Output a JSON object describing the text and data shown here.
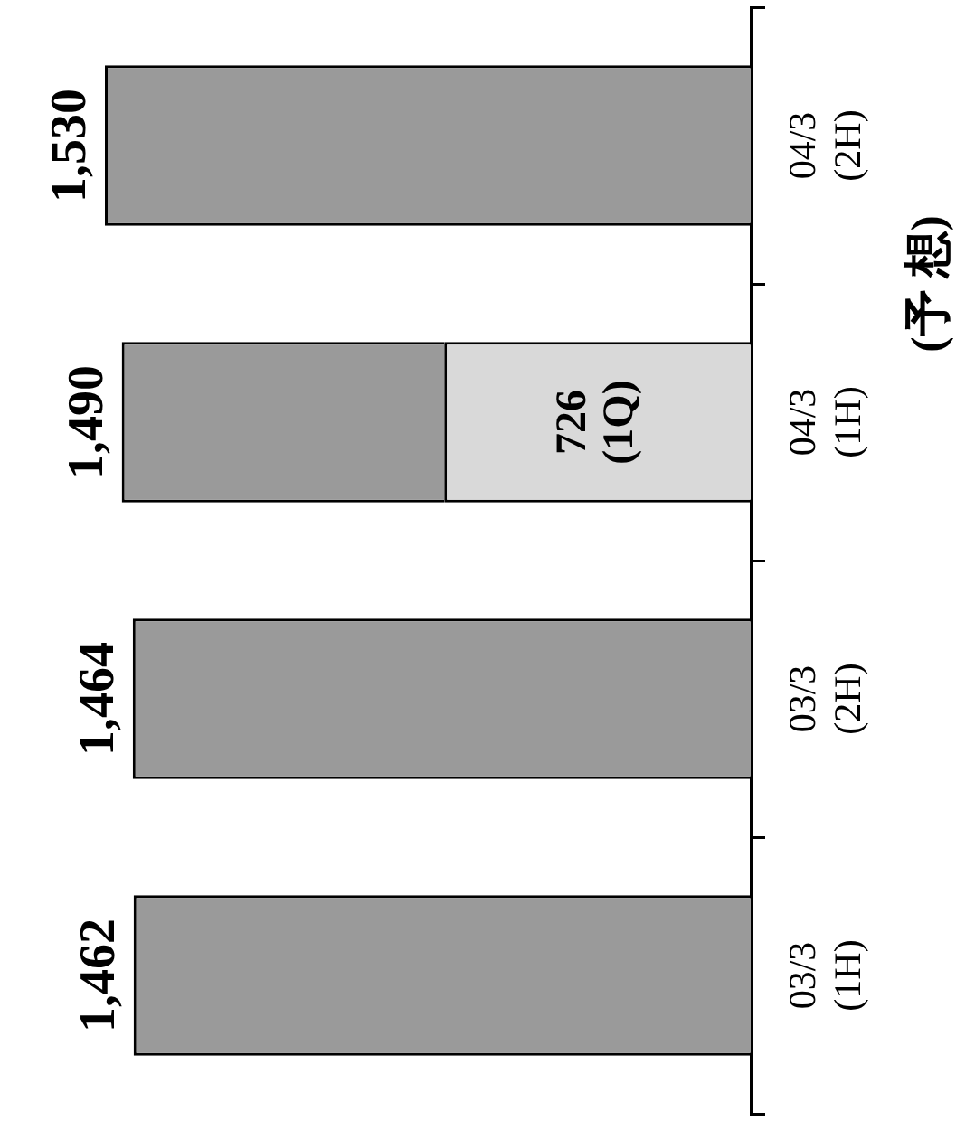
{
  "chart_data": {
    "type": "bar",
    "stacked": true,
    "orientation": "horizontal",
    "categories": [
      "04/3\n(2H)",
      "04/3\n(1H)",
      "03/3\n(2H)",
      "03/3\n(1H)"
    ],
    "series": [
      {
        "color": "#d9d9d9",
        "values": [
          null,
          726,
          null,
          null
        ],
        "value_labels": [
          null,
          "726\n(1Q)",
          null,
          null
        ]
      },
      {
        "color": "#9a9a9a",
        "values": [
          1530,
          764,
          1464,
          1462
        ]
      }
    ],
    "totals": [
      "1,530",
      "1,490",
      "1,464",
      "1,462"
    ],
    "annotations": [
      "(予 想)"
    ],
    "grid": false,
    "legend": false
  }
}
